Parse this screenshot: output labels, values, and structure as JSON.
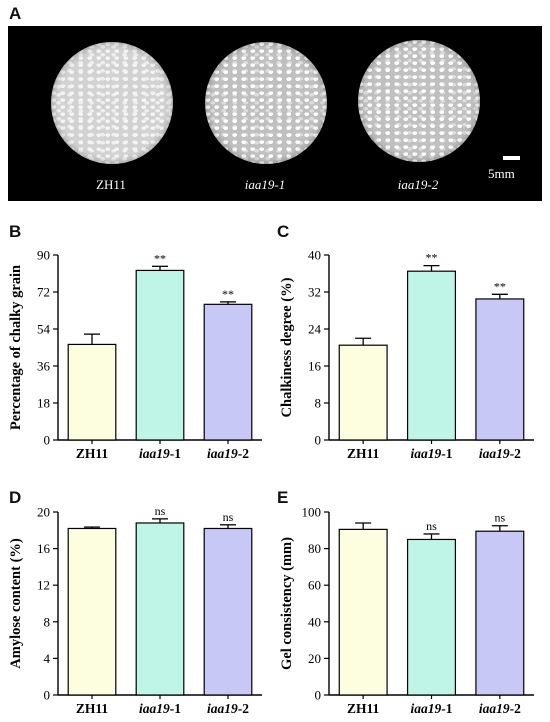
{
  "panel_letters": {
    "a": "A",
    "b": "B",
    "c": "C",
    "d": "D",
    "e": "E"
  },
  "photo": {
    "labels": [
      "ZH11",
      "iaa19-1",
      "iaa19-2"
    ],
    "scale_label": "5mm"
  },
  "colors": {
    "ZH11": "#fdfde0",
    "iaa19-1": "#bff5e6",
    "iaa19-2": "#c8c8f7"
  },
  "chart_data": [
    {
      "id": "B",
      "type": "bar",
      "categories": [
        "ZH11",
        "iaa19-1",
        "iaa19-2"
      ],
      "values": [
        46.5,
        82.5,
        66
      ],
      "errors": [
        5,
        2,
        1.2
      ],
      "annotations": [
        "",
        "**",
        "**"
      ],
      "ylabel": "Percentage of chalky grain",
      "ylim": [
        0,
        90
      ],
      "yticks": [
        0,
        18,
        36,
        54,
        72,
        90
      ]
    },
    {
      "id": "C",
      "type": "bar",
      "categories": [
        "ZH11",
        "iaa19-1",
        "iaa19-2"
      ],
      "values": [
        20.5,
        36.5,
        30.5
      ],
      "errors": [
        1.5,
        1.2,
        1
      ],
      "annotations": [
        "",
        "**",
        "**"
      ],
      "ylabel": "Chalkiness degree (%)",
      "ylim": [
        0,
        40
      ],
      "yticks": [
        0,
        8,
        16,
        24,
        32,
        40
      ]
    },
    {
      "id": "D",
      "type": "bar",
      "categories": [
        "ZH11",
        "iaa19-1",
        "iaa19-2"
      ],
      "values": [
        18.2,
        18.8,
        18.2
      ],
      "errors": [
        0.15,
        0.45,
        0.4
      ],
      "annotations": [
        "",
        "ns",
        "ns"
      ],
      "ylabel": "Amylose content (%)",
      "ylim": [
        0,
        20
      ],
      "yticks": [
        0,
        4,
        8,
        12,
        16,
        20
      ]
    },
    {
      "id": "E",
      "type": "bar",
      "categories": [
        "ZH11",
        "iaa19-1",
        "iaa19-2"
      ],
      "values": [
        90.5,
        85,
        89.5
      ],
      "errors": [
        3.5,
        3,
        3
      ],
      "annotations": [
        "",
        "ns",
        "ns"
      ],
      "ylabel": "Gel consistency (mm)",
      "ylim": [
        0,
        100
      ],
      "yticks": [
        0,
        20,
        40,
        60,
        80,
        100
      ]
    }
  ]
}
